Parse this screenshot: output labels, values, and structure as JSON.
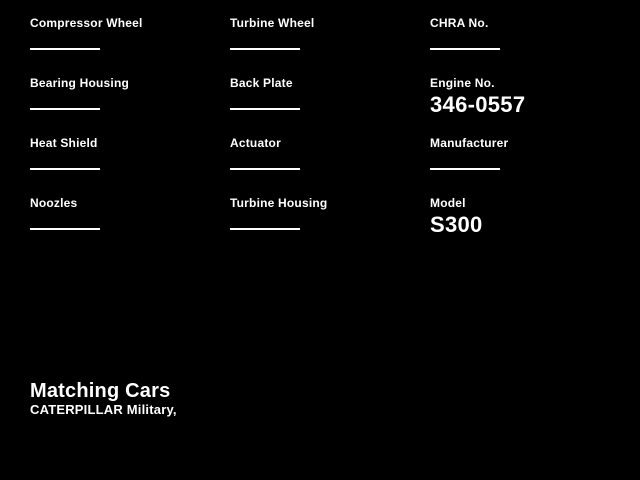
{
  "page": {
    "background_color": "#000000",
    "text_color": "#ffffff"
  },
  "spec_fields": [
    {
      "label": "Compressor Wheel",
      "value": ""
    },
    {
      "label": "Turbine Wheel",
      "value": ""
    },
    {
      "label": "CHRA No.",
      "value": ""
    },
    {
      "label": "Bearing Housing",
      "value": ""
    },
    {
      "label": "Back Plate",
      "value": ""
    },
    {
      "label": "Engine No.",
      "value": "346-0557"
    },
    {
      "label": "Heat Shield",
      "value": ""
    },
    {
      "label": "Actuator",
      "value": ""
    },
    {
      "label": "Manufacturer",
      "value": ""
    },
    {
      "label": "Noozles",
      "value": ""
    },
    {
      "label": "Turbine Housing",
      "value": ""
    },
    {
      "label": "Model",
      "value": "S300"
    }
  ],
  "footer": {
    "heading": "Matching Cars",
    "subtitle": "CATERPILLAR Military,"
  }
}
